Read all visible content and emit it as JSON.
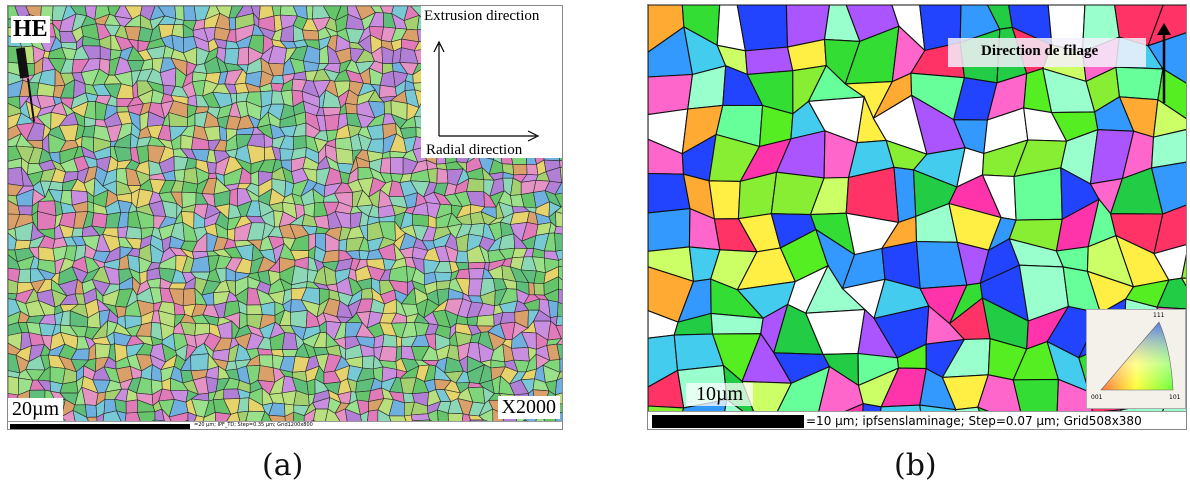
{
  "panel_a": {
    "he_label": "HE",
    "extrusion_label": "Extrusion direction",
    "radial_label": "Radial direction",
    "scale_label": "20µm",
    "magnification_label": "X2000",
    "footer_text": "=20 µm; IPF_TD; Step=0.35 µm; Grid1200x800"
  },
  "panel_b": {
    "direction_label": "Direction de filage",
    "scale_label": "10µm",
    "footer_text": "=10 µm; ipfsenslaminage; Step=0.07 µm; Grid508x380",
    "legend": {
      "top": "111",
      "left": "001",
      "right": "101"
    }
  },
  "captions": {
    "a": "(a)",
    "b": "(b)"
  }
}
